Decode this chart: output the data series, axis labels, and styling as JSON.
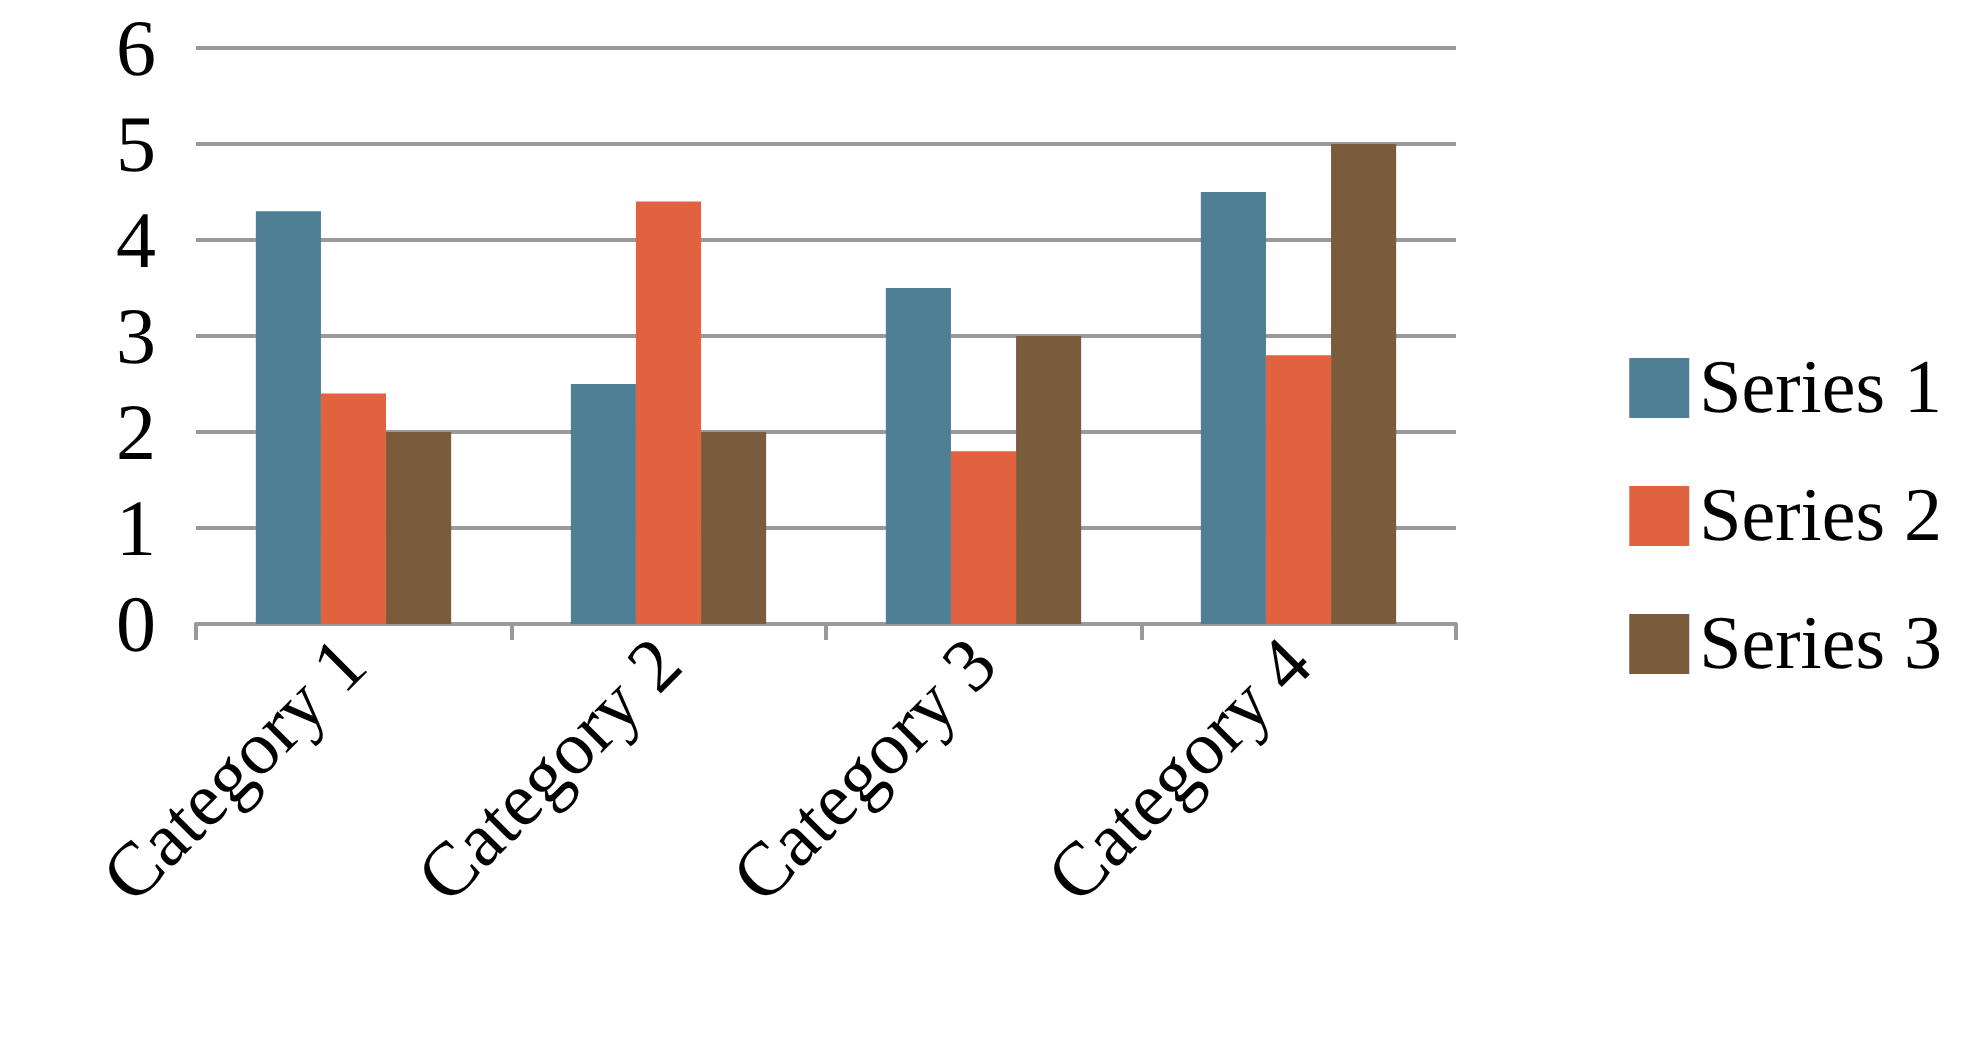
{
  "chart_data": {
    "type": "bar",
    "categories": [
      "Category 1",
      "Category 2",
      "Category 3",
      "Category 4"
    ],
    "series": [
      {
        "name": "Series 1",
        "color": "#4f7f95",
        "values": [
          4.3,
          2.5,
          3.5,
          4.5
        ]
      },
      {
        "name": "Series 2",
        "color": "#e0623e",
        "values": [
          2.4,
          4.4,
          1.8,
          2.8
        ]
      },
      {
        "name": "Series 3",
        "color": "#7a5b3c",
        "values": [
          2,
          2,
          3,
          5
        ]
      }
    ],
    "ylim": [
      0,
      6
    ],
    "yticks": [
      0,
      1,
      2,
      3,
      4,
      5,
      6
    ],
    "grid": "y",
    "legend": "right"
  }
}
